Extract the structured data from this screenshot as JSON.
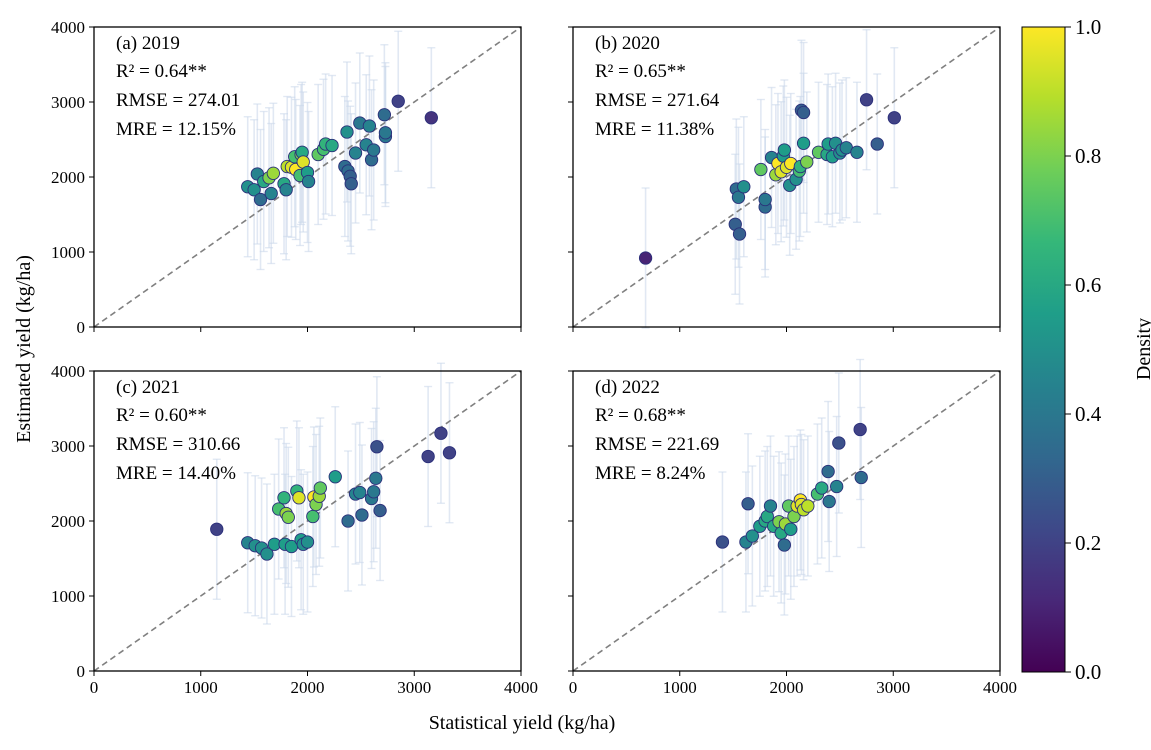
{
  "figure": {
    "xlabel": "Statistical yield (kg/ha)",
    "ylabel": "Estimated yield (kg/ha)",
    "colorbar": {
      "label": "Density",
      "ticks": [
        "0.0",
        "0.2",
        "0.4",
        "0.6",
        "0.8",
        "1.0"
      ],
      "colormap": [
        "#440154",
        "#482878",
        "#3e4989",
        "#31688e",
        "#26828e",
        "#1f9e89",
        "#35b779",
        "#6ece58",
        "#b5de2b",
        "#fde725"
      ]
    }
  },
  "chart_data": [
    {
      "type": "scatter",
      "title": "(a) 2019",
      "annotations": [
        "R² = 0.64**",
        "RMSE = 274.01",
        "MRE = 12.15%"
      ],
      "xlim": [
        0,
        4000
      ],
      "ylim": [
        0,
        4000
      ],
      "xticks": [
        0,
        1000,
        2000,
        3000,
        4000
      ],
      "yticks": [
        0,
        1000,
        2000,
        3000,
        4000
      ],
      "show_xticklabels": false,
      "show_yticklabels": true,
      "points": [
        {
          "x": 1440,
          "y": 1870,
          "density": 0.5
        },
        {
          "x": 1500,
          "y": 1830,
          "density": 0.5
        },
        {
          "x": 1530,
          "y": 2040,
          "density": 0.45
        },
        {
          "x": 1560,
          "y": 1700,
          "density": 0.35
        },
        {
          "x": 1590,
          "y": 1940,
          "density": 0.6
        },
        {
          "x": 1640,
          "y": 1990,
          "density": 0.8
        },
        {
          "x": 1680,
          "y": 2050,
          "density": 0.85
        },
        {
          "x": 1660,
          "y": 1780,
          "density": 0.45
        },
        {
          "x": 1780,
          "y": 1910,
          "density": 0.6
        },
        {
          "x": 1800,
          "y": 1830,
          "density": 0.45
        },
        {
          "x": 1810,
          "y": 2140,
          "density": 0.9
        },
        {
          "x": 1850,
          "y": 2130,
          "density": 0.95
        },
        {
          "x": 1880,
          "y": 2270,
          "density": 0.7
        },
        {
          "x": 1890,
          "y": 2100,
          "density": 1.0
        },
        {
          "x": 1930,
          "y": 2020,
          "density": 0.7
        },
        {
          "x": 1940,
          "y": 2300,
          "density": 0.8
        },
        {
          "x": 1950,
          "y": 2330,
          "density": 0.6
        },
        {
          "x": 1960,
          "y": 2200,
          "density": 0.95
        },
        {
          "x": 2000,
          "y": 2060,
          "density": 0.55
        },
        {
          "x": 2010,
          "y": 1940,
          "density": 0.45
        },
        {
          "x": 2100,
          "y": 2300,
          "density": 0.75
        },
        {
          "x": 2150,
          "y": 2370,
          "density": 0.7
        },
        {
          "x": 2170,
          "y": 2440,
          "density": 0.65
        },
        {
          "x": 2230,
          "y": 2420,
          "density": 0.6
        },
        {
          "x": 2350,
          "y": 2140,
          "density": 0.35
        },
        {
          "x": 2370,
          "y": 2600,
          "density": 0.5
        },
        {
          "x": 2380,
          "y": 2080,
          "density": 0.35
        },
        {
          "x": 2400,
          "y": 2010,
          "density": 0.3
        },
        {
          "x": 2410,
          "y": 1910,
          "density": 0.3
        },
        {
          "x": 2450,
          "y": 2320,
          "density": 0.45
        },
        {
          "x": 2490,
          "y": 2720,
          "density": 0.4
        },
        {
          "x": 2550,
          "y": 2430,
          "density": 0.45
        },
        {
          "x": 2580,
          "y": 2680,
          "density": 0.45
        },
        {
          "x": 2600,
          "y": 2230,
          "density": 0.35
        },
        {
          "x": 2620,
          "y": 2360,
          "density": 0.4
        },
        {
          "x": 2720,
          "y": 2830,
          "density": 0.35
        },
        {
          "x": 2730,
          "y": 2540,
          "density": 0.4
        },
        {
          "x": 2730,
          "y": 2590,
          "density": 0.4
        },
        {
          "x": 2850,
          "y": 3010,
          "density": 0.2
        },
        {
          "x": 3160,
          "y": 2790,
          "density": 0.15
        }
      ]
    },
    {
      "type": "scatter",
      "title": "(b) 2020",
      "annotations": [
        "R² = 0.65**",
        "RMSE = 271.64",
        "MRE = 11.38%"
      ],
      "xlim": [
        0,
        4000
      ],
      "ylim": [
        0,
        4000
      ],
      "xticks": [
        0,
        1000,
        2000,
        3000,
        4000
      ],
      "yticks": [
        0,
        1000,
        2000,
        3000,
        4000
      ],
      "show_xticklabels": false,
      "show_yticklabels": false,
      "points": [
        {
          "x": 680,
          "y": 920,
          "density": 0.1
        },
        {
          "x": 1520,
          "y": 1370,
          "density": 0.3
        },
        {
          "x": 1530,
          "y": 1840,
          "density": 0.35
        },
        {
          "x": 1550,
          "y": 1730,
          "density": 0.4
        },
        {
          "x": 1560,
          "y": 1240,
          "density": 0.3
        },
        {
          "x": 1600,
          "y": 1870,
          "density": 0.5
        },
        {
          "x": 1760,
          "y": 2100,
          "density": 0.75
        },
        {
          "x": 1800,
          "y": 1600,
          "density": 0.35
        },
        {
          "x": 1800,
          "y": 1700,
          "density": 0.4
        },
        {
          "x": 1860,
          "y": 2260,
          "density": 0.45
        },
        {
          "x": 1900,
          "y": 2030,
          "density": 0.85
        },
        {
          "x": 1920,
          "y": 2180,
          "density": 1.0
        },
        {
          "x": 1950,
          "y": 2070,
          "density": 0.95
        },
        {
          "x": 1970,
          "y": 2280,
          "density": 0.55
        },
        {
          "x": 1980,
          "y": 2360,
          "density": 0.55
        },
        {
          "x": 2000,
          "y": 2130,
          "density": 0.95
        },
        {
          "x": 2030,
          "y": 1890,
          "density": 0.5
        },
        {
          "x": 2040,
          "y": 2180,
          "density": 1.0
        },
        {
          "x": 2090,
          "y": 1970,
          "density": 0.5
        },
        {
          "x": 2120,
          "y": 2080,
          "density": 0.7
        },
        {
          "x": 2130,
          "y": 2140,
          "density": 0.65
        },
        {
          "x": 2140,
          "y": 2890,
          "density": 0.3
        },
        {
          "x": 2160,
          "y": 2860,
          "density": 0.3
        },
        {
          "x": 2160,
          "y": 2450,
          "density": 0.55
        },
        {
          "x": 2190,
          "y": 2200,
          "density": 0.8
        },
        {
          "x": 2300,
          "y": 2330,
          "density": 0.75
        },
        {
          "x": 2380,
          "y": 2300,
          "density": 0.6
        },
        {
          "x": 2390,
          "y": 2440,
          "density": 0.55
        },
        {
          "x": 2430,
          "y": 2270,
          "density": 0.55
        },
        {
          "x": 2460,
          "y": 2450,
          "density": 0.5
        },
        {
          "x": 2500,
          "y": 2320,
          "density": 0.5
        },
        {
          "x": 2520,
          "y": 2360,
          "density": 0.5
        },
        {
          "x": 2560,
          "y": 2390,
          "density": 0.45
        },
        {
          "x": 2660,
          "y": 2330,
          "density": 0.45
        },
        {
          "x": 2750,
          "y": 3030,
          "density": 0.2
        },
        {
          "x": 2850,
          "y": 2440,
          "density": 0.3
        },
        {
          "x": 3010,
          "y": 2790,
          "density": 0.2
        }
      ]
    },
    {
      "type": "scatter",
      "title": "(c) 2021",
      "annotations": [
        "R² = 0.60**",
        "RMSE = 310.66",
        "MRE = 14.40%"
      ],
      "xlim": [
        0,
        4000
      ],
      "ylim": [
        0,
        4000
      ],
      "xticks": [
        0,
        1000,
        2000,
        3000,
        4000
      ],
      "yticks": [
        0,
        1000,
        2000,
        3000,
        4000
      ],
      "show_xticklabels": true,
      "show_yticklabels": true,
      "points": [
        {
          "x": 1150,
          "y": 1890,
          "density": 0.2
        },
        {
          "x": 1440,
          "y": 1710,
          "density": 0.45
        },
        {
          "x": 1510,
          "y": 1670,
          "density": 0.5
        },
        {
          "x": 1570,
          "y": 1640,
          "density": 0.5
        },
        {
          "x": 1620,
          "y": 1560,
          "density": 0.5
        },
        {
          "x": 1690,
          "y": 1690,
          "density": 0.55
        },
        {
          "x": 1730,
          "y": 2160,
          "density": 0.7
        },
        {
          "x": 1780,
          "y": 2310,
          "density": 0.65
        },
        {
          "x": 1790,
          "y": 1690,
          "density": 0.55
        },
        {
          "x": 1800,
          "y": 2100,
          "density": 0.85
        },
        {
          "x": 1820,
          "y": 2050,
          "density": 0.8
        },
        {
          "x": 1850,
          "y": 1660,
          "density": 0.55
        },
        {
          "x": 1900,
          "y": 2400,
          "density": 0.65
        },
        {
          "x": 1920,
          "y": 2310,
          "density": 0.95
        },
        {
          "x": 1940,
          "y": 1750,
          "density": 0.55
        },
        {
          "x": 1960,
          "y": 1690,
          "density": 0.5
        },
        {
          "x": 2000,
          "y": 1720,
          "density": 0.5
        },
        {
          "x": 2050,
          "y": 2060,
          "density": 0.7
        },
        {
          "x": 2060,
          "y": 2320,
          "density": 1.0
        },
        {
          "x": 2080,
          "y": 2220,
          "density": 0.8
        },
        {
          "x": 2110,
          "y": 2330,
          "density": 0.85
        },
        {
          "x": 2120,
          "y": 2440,
          "density": 0.75
        },
        {
          "x": 2260,
          "y": 2590,
          "density": 0.55
        },
        {
          "x": 2380,
          "y": 2000,
          "density": 0.35
        },
        {
          "x": 2450,
          "y": 2360,
          "density": 0.45
        },
        {
          "x": 2490,
          "y": 2380,
          "density": 0.45
        },
        {
          "x": 2510,
          "y": 2080,
          "density": 0.35
        },
        {
          "x": 2600,
          "y": 2300,
          "density": 0.4
        },
        {
          "x": 2620,
          "y": 2390,
          "density": 0.4
        },
        {
          "x": 2640,
          "y": 2570,
          "density": 0.4
        },
        {
          "x": 2650,
          "y": 2990,
          "density": 0.25
        },
        {
          "x": 2680,
          "y": 2140,
          "density": 0.3
        },
        {
          "x": 3130,
          "y": 2860,
          "density": 0.2
        },
        {
          "x": 3250,
          "y": 3170,
          "density": 0.2
        },
        {
          "x": 3330,
          "y": 2910,
          "density": 0.2
        }
      ]
    },
    {
      "type": "scatter",
      "title": "(d) 2022",
      "annotations": [
        "R² = 0.68**",
        "RMSE = 221.69",
        "MRE = 8.24%"
      ],
      "xlim": [
        0,
        4000
      ],
      "ylim": [
        0,
        4000
      ],
      "xticks": [
        0,
        1000,
        2000,
        3000,
        4000
      ],
      "yticks": [
        0,
        1000,
        2000,
        3000,
        4000
      ],
      "show_xticklabels": true,
      "show_yticklabels": false,
      "points": [
        {
          "x": 1400,
          "y": 1720,
          "density": 0.25
        },
        {
          "x": 1620,
          "y": 1720,
          "density": 0.45
        },
        {
          "x": 1640,
          "y": 2230,
          "density": 0.3
        },
        {
          "x": 1680,
          "y": 1800,
          "density": 0.5
        },
        {
          "x": 1750,
          "y": 1930,
          "density": 0.55
        },
        {
          "x": 1800,
          "y": 2000,
          "density": 0.6
        },
        {
          "x": 1820,
          "y": 2060,
          "density": 0.6
        },
        {
          "x": 1850,
          "y": 2200,
          "density": 0.45
        },
        {
          "x": 1880,
          "y": 1930,
          "density": 0.6
        },
        {
          "x": 1930,
          "y": 1990,
          "density": 0.8
        },
        {
          "x": 1950,
          "y": 1840,
          "density": 0.6
        },
        {
          "x": 1980,
          "y": 1680,
          "density": 0.35
        },
        {
          "x": 1990,
          "y": 1960,
          "density": 0.85
        },
        {
          "x": 2020,
          "y": 2200,
          "density": 0.75
        },
        {
          "x": 2040,
          "y": 1890,
          "density": 0.55
        },
        {
          "x": 2070,
          "y": 2060,
          "density": 0.8
        },
        {
          "x": 2100,
          "y": 2200,
          "density": 0.95
        },
        {
          "x": 2130,
          "y": 2280,
          "density": 1.0
        },
        {
          "x": 2140,
          "y": 2220,
          "density": 0.95
        },
        {
          "x": 2160,
          "y": 2150,
          "density": 0.9
        },
        {
          "x": 2200,
          "y": 2200,
          "density": 0.9
        },
        {
          "x": 2290,
          "y": 2360,
          "density": 0.7
        },
        {
          "x": 2330,
          "y": 2440,
          "density": 0.6
        },
        {
          "x": 2390,
          "y": 2660,
          "density": 0.35
        },
        {
          "x": 2400,
          "y": 2260,
          "density": 0.4
        },
        {
          "x": 2470,
          "y": 2460,
          "density": 0.45
        },
        {
          "x": 2490,
          "y": 3040,
          "density": 0.25
        },
        {
          "x": 2690,
          "y": 3220,
          "density": 0.2
        },
        {
          "x": 2700,
          "y": 2580,
          "density": 0.35
        }
      ]
    }
  ]
}
